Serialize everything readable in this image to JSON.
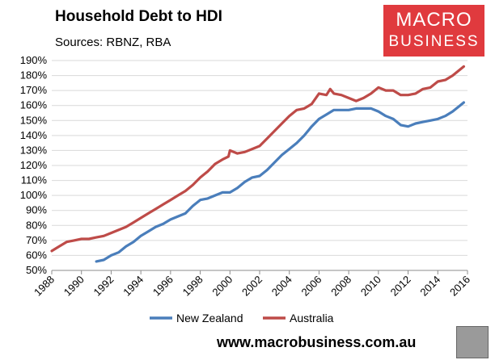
{
  "header": {
    "title": "Household Debt to HDI",
    "subtitle": "Sources: RBNZ, RBA",
    "logo_line1": "MACRO",
    "logo_line2": "BUSINESS"
  },
  "footer": {
    "url": "www.macrobusiness.com.au"
  },
  "colors": {
    "new_zealand": "#4a7ebb",
    "australia": "#be4b48",
    "logo_bg": "#e03a3e"
  },
  "chart_data": {
    "type": "line",
    "title": "Household Debt to HDI",
    "subtitle": "Sources: RBNZ, RBA",
    "xlim": [
      1988,
      2016
    ],
    "ylim": [
      50,
      190
    ],
    "x_ticks": [
      "1988",
      "1990",
      "1992",
      "1994",
      "1996",
      "1998",
      "2000",
      "2002",
      "2004",
      "2006",
      "2008",
      "2010",
      "2012",
      "2014",
      "2016"
    ],
    "y_ticks": [
      "50%",
      "60%",
      "70%",
      "80%",
      "90%",
      "100%",
      "110%",
      "120%",
      "130%",
      "140%",
      "150%",
      "160%",
      "170%",
      "180%",
      "190%"
    ],
    "legend": {
      "position": "bottom",
      "entries": [
        "New Zealand",
        "Australia"
      ]
    },
    "grid": "horizontal",
    "series": [
      {
        "name": "New Zealand",
        "color": "#4a7ebb",
        "x": [
          1991.0,
          1991.5,
          1992.0,
          1992.5,
          1993.0,
          1993.5,
          1994.0,
          1994.5,
          1995.0,
          1995.5,
          1996.0,
          1996.5,
          1997.0,
          1997.5,
          1998.0,
          1998.5,
          1999.0,
          1999.5,
          2000.0,
          2000.5,
          2001.0,
          2001.5,
          2002.0,
          2002.5,
          2003.0,
          2003.5,
          2004.0,
          2004.5,
          2005.0,
          2005.5,
          2006.0,
          2006.5,
          2007.0,
          2007.5,
          2008.0,
          2008.5,
          2009.0,
          2009.5,
          2010.0,
          2010.5,
          2011.0,
          2011.5,
          2012.0,
          2012.5,
          2013.0,
          2013.5,
          2014.0,
          2014.5,
          2015.0,
          2015.5,
          2015.75
        ],
        "y": [
          56,
          57,
          60,
          62,
          66,
          69,
          73,
          76,
          79,
          81,
          84,
          86,
          88,
          93,
          97,
          98,
          100,
          102,
          102,
          105,
          109,
          112,
          113,
          117,
          122,
          127,
          131,
          135,
          140,
          146,
          151,
          154,
          157,
          157,
          157,
          158,
          158,
          158,
          156,
          153,
          151,
          147,
          146,
          148,
          149,
          150,
          151,
          153,
          156,
          160,
          162
        ]
      },
      {
        "name": "Australia",
        "color": "#be4b48",
        "x": [
          1988.0,
          1988.5,
          1989.0,
          1989.5,
          1990.0,
          1990.5,
          1991.0,
          1991.5,
          1992.0,
          1992.5,
          1993.0,
          1993.5,
          1994.0,
          1994.5,
          1995.0,
          1995.5,
          1996.0,
          1996.5,
          1997.0,
          1997.5,
          1998.0,
          1998.5,
          1999.0,
          1999.5,
          1999.9,
          2000.0,
          2000.5,
          2001.0,
          2001.5,
          2002.0,
          2002.5,
          2003.0,
          2003.5,
          2004.0,
          2004.5,
          2005.0,
          2005.5,
          2006.0,
          2006.5,
          2006.75,
          2007.0,
          2007.5,
          2008.0,
          2008.5,
          2009.0,
          2009.5,
          2010.0,
          2010.5,
          2011.0,
          2011.5,
          2012.0,
          2012.5,
          2013.0,
          2013.5,
          2014.0,
          2014.5,
          2015.0,
          2015.5,
          2015.75
        ],
        "y": [
          63,
          66,
          69,
          70,
          71,
          71,
          72,
          73,
          75,
          77,
          79,
          82,
          85,
          88,
          91,
          94,
          97,
          100,
          103,
          107,
          112,
          116,
          121,
          124,
          126,
          130,
          128,
          129,
          131,
          133,
          138,
          143,
          148,
          153,
          157,
          158,
          161,
          168,
          167,
          171,
          168,
          167,
          165,
          163,
          165,
          168,
          172,
          170,
          170,
          167,
          167,
          168,
          171,
          172,
          176,
          177,
          180,
          184,
          186
        ]
      }
    ]
  }
}
